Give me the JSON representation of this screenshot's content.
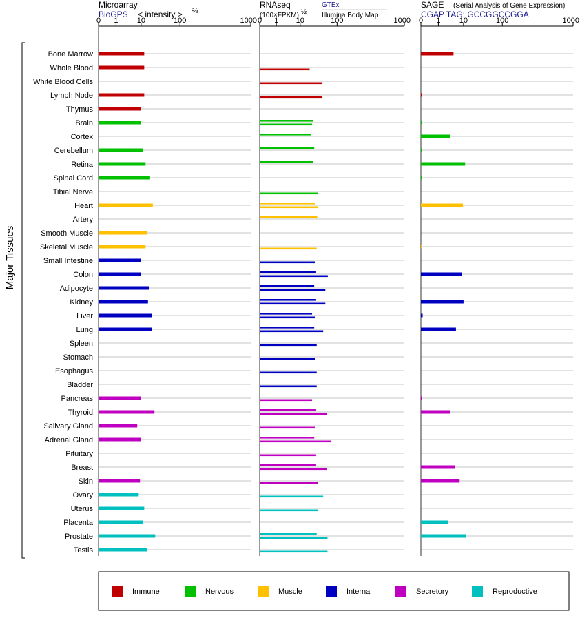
{
  "panels": [
    {
      "key": "microarray",
      "title": "Microarray",
      "subtitle": "BioGPS",
      "scale_label": "< intensity >",
      "exponent": "⅔",
      "ticks": [
        "0",
        "1",
        "10",
        "100",
        "1000"
      ]
    },
    {
      "key": "rnaseq",
      "title": "RNAseq",
      "unit_label": "(100×FPKM)",
      "exponent": "½",
      "source_top": "GTEx",
      "source_bottom": "Illumina Body Map",
      "ticks": [
        "0",
        "1",
        "10",
        "100",
        "1000"
      ]
    },
    {
      "key": "sage",
      "title": "SAGE",
      "title_note": "(Serial Analysis of Gene Expression)",
      "subtitle": "CGAP TAG: GCCGGCCGGA",
      "ticks": [
        "0",
        "1",
        "10",
        "100",
        "1000"
      ]
    }
  ],
  "side_label": "Major Tissues",
  "legend": [
    {
      "name": "Immune",
      "color": "#c00000"
    },
    {
      "name": "Nervous",
      "color": "#00c000"
    },
    {
      "name": "Muscle",
      "color": "#ffc000"
    },
    {
      "name": "Internal",
      "color": "#0000c0"
    },
    {
      "name": "Secretory",
      "color": "#c000c0"
    },
    {
      "name": "Reproductive",
      "color": "#00c0c0"
    }
  ],
  "chart_data": {
    "type": "bar",
    "scale": "nonlinear expression scale with ticks 0, 1, 10, 100, 1000",
    "tick_values": [
      0,
      1,
      10,
      100,
      1000
    ],
    "categories": [
      "Bone Marrow",
      "Whole Blood",
      "White Blood Cells",
      "Lymph Node",
      "Thymus",
      "Brain",
      "Cortex",
      "Cerebellum",
      "Retina",
      "Spinal Cord",
      "Tibial Nerve",
      "Heart",
      "Artery",
      "Smooth Muscle",
      "Skeletal Muscle",
      "Small Intestine",
      "Colon",
      "Adipocyte",
      "Kidney",
      "Liver",
      "Lung",
      "Spleen",
      "Stomach",
      "Esophagus",
      "Bladder",
      "Pancreas",
      "Thyroid",
      "Salivary Gland",
      "Adrenal Gland",
      "Pituitary",
      "Breast",
      "Skin",
      "Ovary",
      "Uterus",
      "Placenta",
      "Prostate",
      "Testis"
    ],
    "tissue_group": [
      "Immune",
      "Immune",
      "Immune",
      "Immune",
      "Immune",
      "Nervous",
      "Nervous",
      "Nervous",
      "Nervous",
      "Nervous",
      "Nervous",
      "Muscle",
      "Muscle",
      "Muscle",
      "Muscle",
      "Internal",
      "Internal",
      "Internal",
      "Internal",
      "Internal",
      "Internal",
      "Internal",
      "Internal",
      "Internal",
      "Internal",
      "Secretory",
      "Secretory",
      "Secretory",
      "Secretory",
      "Secretory",
      "Secretory",
      "Secretory",
      "Reproductive",
      "Reproductive",
      "Reproductive",
      "Reproductive",
      "Reproductive"
    ],
    "series": [
      {
        "name": "Microarray",
        "values": [
          12,
          12,
          null,
          12,
          10,
          10,
          null,
          11,
          13,
          17,
          null,
          20,
          null,
          14,
          13,
          10,
          10,
          16,
          15,
          19,
          19,
          null,
          null,
          null,
          null,
          10,
          22,
          7,
          10,
          null,
          null,
          9,
          8,
          12,
          11,
          23,
          14
        ]
      },
      {
        "name": "GTEx",
        "values": [
          null,
          null,
          null,
          null,
          null,
          22,
          20,
          24,
          22,
          null,
          null,
          25,
          29,
          null,
          null,
          null,
          27,
          24,
          27,
          21,
          24,
          null,
          null,
          null,
          null,
          null,
          27,
          null,
          24,
          null,
          27,
          null,
          null,
          null,
          null,
          28,
          null
        ]
      },
      {
        "name": "Illumina Body Map",
        "values": [
          null,
          18,
          40,
          40,
          null,
          21,
          null,
          null,
          null,
          null,
          30,
          31,
          null,
          null,
          28,
          26,
          56,
          48,
          48,
          25,
          42,
          28,
          26,
          28,
          28,
          21,
          52,
          25,
          70,
          27,
          53,
          30,
          42,
          31,
          null,
          55,
          55
        ]
      },
      {
        "name": "SAGE",
        "values": [
          4,
          null,
          null,
          0.05,
          null,
          0.05,
          3,
          0.05,
          11,
          0.05,
          null,
          9.5,
          null,
          null,
          0.05,
          null,
          8.5,
          null,
          10,
          0.1,
          5,
          null,
          null,
          null,
          null,
          0.05,
          3,
          null,
          null,
          null,
          4.5,
          7,
          null,
          null,
          2.5,
          11.5,
          null
        ]
      }
    ]
  }
}
